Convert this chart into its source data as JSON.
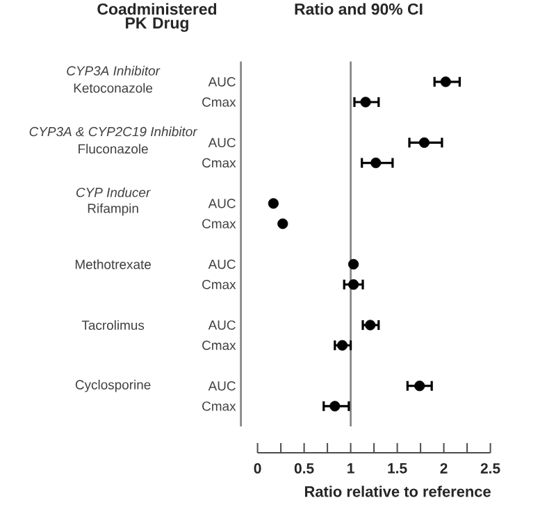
{
  "chart_data": {
    "type": "scatter",
    "orientation": "horizontal",
    "title": "Ratio and 90% CI",
    "xlabel": "Ratio relative to reference",
    "categories": [
      "AUC",
      "Cmax",
      null,
      "AUC",
      "Cmax",
      null,
      "AUC",
      "Cmax",
      null,
      "AUC",
      "Cmax",
      null,
      "AUC",
      "Cmax",
      null,
      "AUC",
      "Cmax"
    ],
    "values": [
      2.02,
      1.16,
      null,
      1.79,
      1.27,
      null,
      0.17,
      0.27,
      null,
      1.03,
      1.03,
      null,
      1.21,
      0.91,
      null,
      1.74,
      0.83
    ],
    "errors": [
      [
        1.9,
        2.17
      ],
      [
        1.04,
        1.3
      ],
      null,
      [
        1.63,
        1.98
      ],
      [
        1.12,
        1.45
      ],
      null,
      null,
      null,
      null,
      null,
      [
        0.93,
        1.13
      ],
      null,
      [
        1.13,
        1.3
      ],
      [
        0.83,
        1.0
      ],
      null,
      [
        1.61,
        1.87
      ],
      [
        0.71,
        0.98
      ]
    ],
    "color": "#000000",
    "xlim": [
      0,
      2.5
    ],
    "xticks": [
      0,
      {
        "value": 0.25,
        "label": null
      },
      0.5,
      {
        "value": 0.75,
        "label": null
      },
      1,
      {
        "value": 1.25,
        "label": null
      },
      1.5,
      {
        "value": 1.75,
        "label": null
      },
      2,
      {
        "value": 2.25,
        "label": null
      },
      2.5
    ],
    "ref_lines": [
      {
        "axis": "x",
        "value": 1,
        "color": "#808080"
      }
    ],
    "annotations": [
      "Coadministered PK Drug",
      "CYP3A Inhibitor",
      "Ketoconazole",
      "CYP3A & CYP2C19 Inhibitor",
      "Fluconazole",
      "CYP Inducer",
      "Rifampin",
      "Methotrexate",
      "Tacrolimus",
      "Cyclosporine"
    ]
  }
}
